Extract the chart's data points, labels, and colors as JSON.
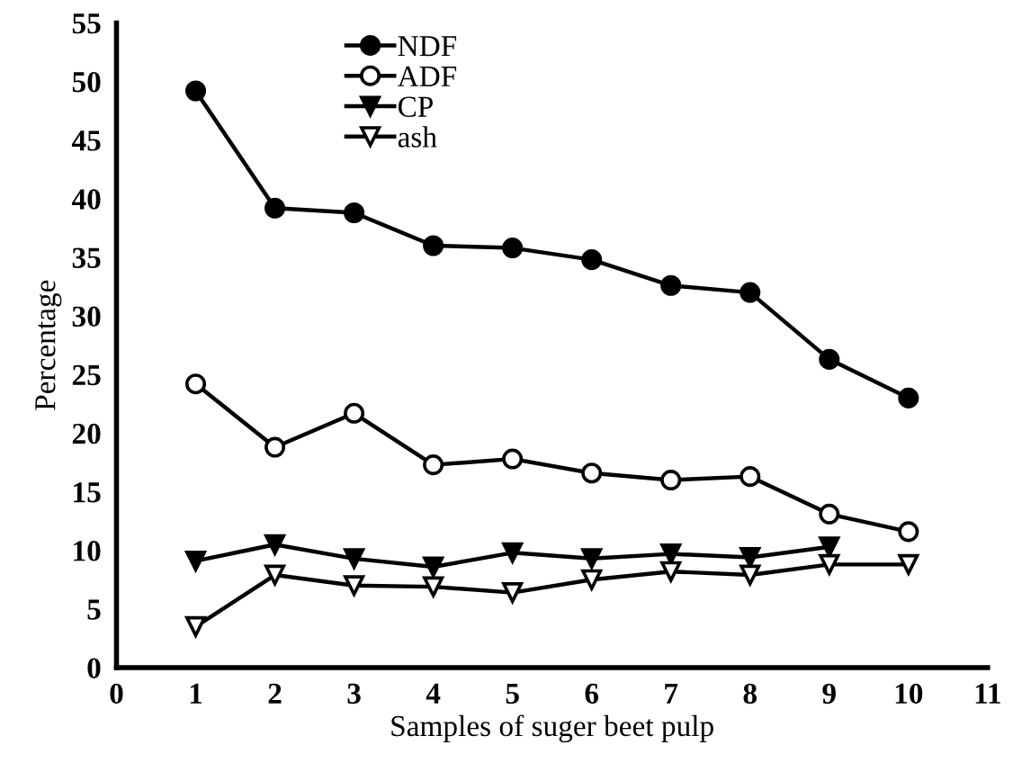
{
  "chart_data": {
    "type": "line",
    "xlabel": "Samples of suger beet pulp",
    "ylabel": "Percentage",
    "x": [
      1,
      2,
      3,
      4,
      5,
      6,
      7,
      8,
      9,
      10
    ],
    "series": [
      {
        "name": "NDF",
        "color": "#000000",
        "marker": "circle",
        "values": [
          49.2,
          39.2,
          38.8,
          36.0,
          35.8,
          34.8,
          32.6,
          32.0,
          26.3,
          23.0
        ]
      },
      {
        "name": "ADF",
        "color": "#000000",
        "marker": "circle-open",
        "values": [
          24.2,
          18.8,
          21.7,
          17.3,
          17.8,
          16.6,
          16.0,
          16.3,
          13.1,
          11.6
        ]
      },
      {
        "name": "CP",
        "color": "#000000",
        "marker": "triangle_down",
        "values": [
          9.1,
          10.5,
          9.3,
          8.6,
          9.8,
          9.3,
          9.7,
          9.4,
          10.3,
          null
        ]
      },
      {
        "name": "ash",
        "color": "#000000",
        "marker": "triangle_down-open",
        "values": [
          3.5,
          7.9,
          7.0,
          6.9,
          6.4,
          7.5,
          8.2,
          7.9,
          8.8,
          8.8
        ]
      }
    ],
    "xlim": [
      0,
      11
    ],
    "xticks": [
      0,
      1,
      2,
      3,
      4,
      5,
      6,
      7,
      8,
      9,
      10,
      11
    ],
    "ylim": [
      0,
      55
    ],
    "yticks": [
      0,
      5,
      10,
      15,
      20,
      25,
      30,
      35,
      40,
      45,
      50,
      55
    ],
    "grid": false,
    "legend": "top",
    "line_style": "solid"
  }
}
